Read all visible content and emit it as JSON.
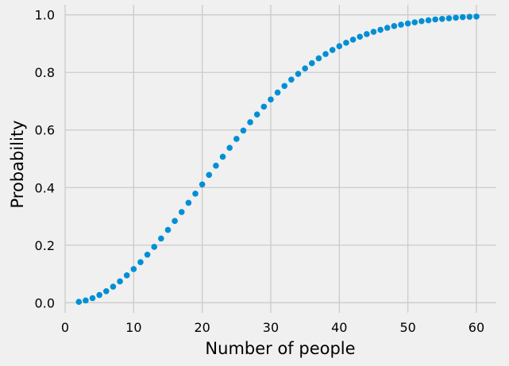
{
  "chart_data": {
    "type": "scatter",
    "xlabel": "Number of people",
    "ylabel": "Probability",
    "xlim": [
      0,
      62.9
    ],
    "ylim": [
      -0.035,
      1.035
    ],
    "x_ticks": [
      0,
      10,
      20,
      30,
      40,
      50,
      60
    ],
    "x_tick_labels": [
      "0",
      "10",
      "20",
      "30",
      "40",
      "50",
      "60"
    ],
    "y_ticks": [
      0.0,
      0.2,
      0.4,
      0.6,
      0.8,
      1.0
    ],
    "y_tick_labels": [
      "0.0",
      "0.2",
      "0.4",
      "0.6",
      "0.8",
      "1.0"
    ],
    "grid": true,
    "marker_color": "#008fd5",
    "background": "#f0f0f0",
    "series": [
      {
        "x": [
          2,
          3,
          4,
          5,
          6,
          7,
          8,
          9,
          10,
          11,
          12,
          13,
          14,
          15,
          16,
          17,
          18,
          19,
          20,
          21,
          22,
          23,
          24,
          25,
          26,
          27,
          28,
          29,
          30,
          31,
          32,
          33,
          34,
          35,
          36,
          37,
          38,
          39,
          40,
          41,
          42,
          43,
          44,
          45,
          46,
          47,
          48,
          49,
          50,
          51,
          52,
          53,
          54,
          55,
          56,
          57,
          58,
          59,
          60
        ],
        "y": [
          0.003,
          0.008,
          0.016,
          0.027,
          0.04,
          0.056,
          0.074,
          0.095,
          0.117,
          0.141,
          0.167,
          0.194,
          0.223,
          0.253,
          0.284,
          0.315,
          0.347,
          0.379,
          0.411,
          0.444,
          0.476,
          0.507,
          0.538,
          0.569,
          0.598,
          0.627,
          0.654,
          0.681,
          0.706,
          0.73,
          0.753,
          0.775,
          0.795,
          0.814,
          0.832,
          0.849,
          0.864,
          0.878,
          0.891,
          0.903,
          0.914,
          0.924,
          0.933,
          0.941,
          0.948,
          0.955,
          0.961,
          0.966,
          0.97,
          0.974,
          0.978,
          0.981,
          0.984,
          0.986,
          0.988,
          0.99,
          0.992,
          0.993,
          0.994
        ]
      }
    ]
  }
}
